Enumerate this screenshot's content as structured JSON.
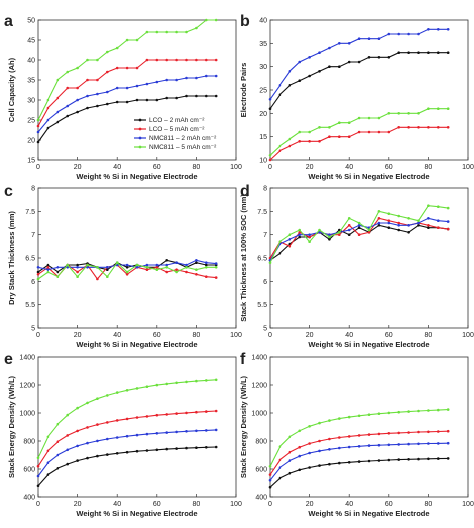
{
  "colors": {
    "black": "#111111",
    "red": "#e8212b",
    "blue": "#2a3bd6",
    "green": "#6be03c"
  },
  "legend": {
    "entries": [
      "LCO – 2 mAh cm⁻²",
      "LCO – 5 mAh cm⁻²",
      "NMC811 – 2 mAh cm⁻²",
      "NMC811 – 5 mAh cm⁻²"
    ],
    "colors": [
      "#111111",
      "#e8212b",
      "#2a3bd6",
      "#6be03c"
    ],
    "placement": "lower-right"
  },
  "chart_data": [
    {
      "letter": "a",
      "type": "line",
      "xlabel": "Weight % Si in Negative Electrode",
      "ylabel": "Cell Capacity (Ah)",
      "xlim": [
        0,
        100
      ],
      "ylim": [
        15,
        50
      ],
      "xticks": [
        0,
        20,
        40,
        60,
        80,
        100
      ],
      "yticks": [
        15,
        20,
        25,
        30,
        35,
        40,
        45,
        50
      ],
      "x": [
        0,
        5,
        10,
        15,
        20,
        25,
        30,
        35,
        40,
        45,
        50,
        55,
        60,
        65,
        70,
        75,
        80,
        85,
        90
      ],
      "series": [
        {
          "name": "LCO – 2 mAh cm⁻²",
          "color": "#111111",
          "values": [
            19.5,
            23,
            24.5,
            26,
            27,
            28,
            28.5,
            29,
            29.5,
            29.5,
            30,
            30,
            30,
            30.5,
            30.5,
            31,
            31,
            31,
            31
          ]
        },
        {
          "name": "LCO – 5 mAh cm⁻²",
          "color": "#e8212b",
          "values": [
            23.5,
            28,
            30.5,
            33,
            33,
            35,
            35,
            37,
            38,
            38,
            38,
            40,
            40,
            40,
            40,
            40,
            40,
            40,
            40
          ]
        },
        {
          "name": "NMC811 – 2 mAh cm⁻²",
          "color": "#2a3bd6",
          "values": [
            22,
            25,
            27,
            28.5,
            30,
            31,
            31.5,
            32,
            33,
            33,
            33.5,
            34,
            34.5,
            35,
            35,
            35.5,
            35.5,
            36,
            36
          ]
        },
        {
          "name": "NMC811 – 5 mAh cm⁻²",
          "color": "#6be03c",
          "values": [
            25,
            30,
            35,
            37,
            38,
            40,
            40,
            42,
            43,
            45,
            45,
            47,
            47,
            47,
            47,
            47,
            48,
            50,
            50
          ]
        }
      ]
    },
    {
      "letter": "b",
      "type": "line",
      "xlabel": "Weight % Si in Negative Electrode",
      "ylabel": "Electrode Pairs",
      "xlim": [
        0,
        100
      ],
      "ylim": [
        10,
        40
      ],
      "xticks": [
        0,
        20,
        40,
        60,
        80,
        100
      ],
      "yticks": [
        10,
        15,
        20,
        25,
        30,
        35,
        40
      ],
      "x": [
        0,
        5,
        10,
        15,
        20,
        25,
        30,
        35,
        40,
        45,
        50,
        55,
        60,
        65,
        70,
        75,
        80,
        85,
        90
      ],
      "series": [
        {
          "name": "LCO – 2 mAh cm⁻²",
          "color": "#111111",
          "values": [
            21,
            24,
            26,
            27,
            28,
            29,
            30,
            30,
            31,
            31,
            32,
            32,
            32,
            33,
            33,
            33,
            33,
            33,
            33
          ]
        },
        {
          "name": "LCO – 5 mAh cm⁻²",
          "color": "#e8212b",
          "values": [
            10,
            12,
            13,
            14,
            14,
            14,
            15,
            15,
            15,
            16,
            16,
            16,
            16,
            17,
            17,
            17,
            17,
            17,
            17
          ]
        },
        {
          "name": "NMC811 – 2 mAh cm⁻²",
          "color": "#2a3bd6",
          "values": [
            23,
            26,
            29,
            31,
            32,
            33,
            34,
            35,
            35,
            36,
            36,
            36,
            37,
            37,
            37,
            37,
            38,
            38,
            38
          ]
        },
        {
          "name": "NMC811 – 5 mAh cm⁻²",
          "color": "#6be03c",
          "values": [
            11,
            13,
            14.5,
            16,
            16,
            17,
            17,
            18,
            18,
            19,
            19,
            19,
            20,
            20,
            20,
            20,
            21,
            21,
            21
          ]
        }
      ]
    },
    {
      "letter": "c",
      "type": "line",
      "xlabel": "Weight % Si in Negative Electrode",
      "ylabel": "Dry Stack Thickness (mm)",
      "xlim": [
        0,
        100
      ],
      "ylim": [
        5,
        8
      ],
      "xticks": [
        0,
        20,
        40,
        60,
        80,
        100
      ],
      "yticks": [
        5,
        5.5,
        6,
        6.5,
        7,
        7.5,
        8
      ],
      "x": [
        0,
        5,
        10,
        15,
        20,
        25,
        30,
        35,
        40,
        45,
        50,
        55,
        60,
        65,
        70,
        75,
        80,
        85,
        90
      ],
      "series": [
        {
          "name": "LCO – 2 mAh cm⁻²",
          "color": "#111111",
          "values": [
            6.2,
            6.35,
            6.2,
            6.35,
            6.35,
            6.38,
            6.3,
            6.25,
            6.4,
            6.3,
            6.35,
            6.3,
            6.3,
            6.45,
            6.4,
            6.3,
            6.4,
            6.35,
            6.35
          ]
        },
        {
          "name": "LCO – 5 mAh cm⁻²",
          "color": "#e8212b",
          "values": [
            6.15,
            6.3,
            6.1,
            6.35,
            6.2,
            6.35,
            6.05,
            6.3,
            6.35,
            6.15,
            6.3,
            6.25,
            6.3,
            6.2,
            6.25,
            6.2,
            6.15,
            6.1,
            6.08
          ]
        },
        {
          "name": "NMC811 – 2 mAh cm⁻²",
          "color": "#2a3bd6",
          "values": [
            6.3,
            6.25,
            6.3,
            6.3,
            6.3,
            6.3,
            6.3,
            6.3,
            6.35,
            6.35,
            6.3,
            6.35,
            6.35,
            6.35,
            6.4,
            6.35,
            6.45,
            6.4,
            6.38
          ]
        },
        {
          "name": "NMC811 – 5 mAh cm⁻²",
          "color": "#6be03c",
          "values": [
            6.05,
            6.2,
            6.1,
            6.35,
            6.1,
            6.35,
            6.3,
            6.1,
            6.4,
            6.2,
            6.35,
            6.3,
            6.25,
            6.3,
            6.2,
            6.3,
            6.25,
            6.3,
            6.3
          ]
        }
      ]
    },
    {
      "letter": "d",
      "type": "line",
      "xlabel": "Weight % Si in Negative Electrode",
      "ylabel": "Stack Thickness at 100% SOC (mm)",
      "xlim": [
        0,
        100
      ],
      "ylim": [
        5,
        8
      ],
      "xticks": [
        0,
        20,
        40,
        60,
        80,
        100
      ],
      "yticks": [
        5,
        5.5,
        6,
        6.5,
        7,
        7.5,
        8
      ],
      "x": [
        0,
        5,
        10,
        15,
        20,
        25,
        30,
        35,
        40,
        45,
        50,
        55,
        60,
        65,
        70,
        75,
        80,
        85,
        90
      ],
      "series": [
        {
          "name": "LCO – 2 mAh cm⁻²",
          "color": "#111111",
          "values": [
            6.45,
            6.6,
            6.8,
            6.95,
            6.95,
            7.05,
            6.9,
            7.1,
            7.0,
            7.15,
            7.05,
            7.2,
            7.15,
            7.1,
            7.05,
            7.2,
            7.15,
            7.15,
            7.12
          ]
        },
        {
          "name": "LCO – 5 mAh cm⁻²",
          "color": "#e8212b",
          "values": [
            6.5,
            6.85,
            6.75,
            7.05,
            6.95,
            7.05,
            7.0,
            7.0,
            7.2,
            7.0,
            7.05,
            7.35,
            7.3,
            7.25,
            7.2,
            7.25,
            7.2,
            7.15,
            7.12
          ]
        },
        {
          "name": "NMC811 – 2 mAh cm⁻²",
          "color": "#2a3bd6",
          "values": [
            6.45,
            6.8,
            6.9,
            7.0,
            7.0,
            7.05,
            7.0,
            7.05,
            7.1,
            7.2,
            7.15,
            7.25,
            7.25,
            7.2,
            7.2,
            7.25,
            7.35,
            7.3,
            7.28
          ]
        },
        {
          "name": "NMC811 – 5 mAh cm⁻²",
          "color": "#6be03c",
          "values": [
            6.4,
            6.85,
            7.0,
            7.1,
            6.85,
            7.1,
            6.95,
            7.05,
            7.35,
            7.25,
            7.1,
            7.5,
            7.45,
            7.4,
            7.35,
            7.3,
            7.62,
            7.6,
            7.57
          ]
        }
      ]
    },
    {
      "letter": "e",
      "type": "line",
      "xlabel": "Weight % Si in Negative Electrode",
      "ylabel": "Stack Energy Density (Wh/L)",
      "xlim": [
        0,
        100
      ],
      "ylim": [
        400,
        1400
      ],
      "xticks": [
        0,
        20,
        40,
        60,
        80,
        100
      ],
      "yticks": [
        400,
        600,
        800,
        1000,
        1200,
        1400
      ],
      "x": [
        0,
        5,
        10,
        15,
        20,
        25,
        30,
        35,
        40,
        45,
        50,
        55,
        60,
        65,
        70,
        75,
        80,
        85,
        90
      ],
      "series": [
        {
          "name": "LCO – 2 mAh cm⁻²",
          "color": "#111111",
          "values": [
            480,
            560,
            605,
            635,
            660,
            678,
            692,
            703,
            712,
            720,
            727,
            732,
            737,
            742,
            746,
            749,
            752,
            755,
            757
          ]
        },
        {
          "name": "LCO – 5 mAh cm⁻²",
          "color": "#e8212b",
          "values": [
            620,
            730,
            795,
            840,
            872,
            897,
            917,
            933,
            947,
            958,
            968,
            976,
            984,
            990,
            996,
            1001,
            1006,
            1010,
            1014
          ]
        },
        {
          "name": "NMC811 – 2 mAh cm⁻²",
          "color": "#2a3bd6",
          "values": [
            550,
            645,
            700,
            737,
            765,
            785,
            801,
            814,
            825,
            834,
            842,
            849,
            855,
            860,
            865,
            869,
            873,
            876,
            879
          ]
        },
        {
          "name": "NMC811 – 5 mAh cm⁻²",
          "color": "#6be03c",
          "values": [
            680,
            830,
            920,
            985,
            1035,
            1072,
            1102,
            1126,
            1146,
            1162,
            1176,
            1188,
            1199,
            1208,
            1216,
            1222,
            1228,
            1233,
            1237
          ]
        }
      ]
    },
    {
      "letter": "f",
      "type": "line",
      "xlabel": "Weight % Si in Negative Electrode",
      "ylabel": "Stack Energy Density (Wh/L)",
      "xlim": [
        0,
        100
      ],
      "ylim": [
        400,
        1400
      ],
      "xticks": [
        0,
        20,
        40,
        60,
        80,
        100
      ],
      "yticks": [
        400,
        600,
        800,
        1000,
        1200,
        1400
      ],
      "x": [
        0,
        5,
        10,
        15,
        20,
        25,
        30,
        35,
        40,
        45,
        50,
        55,
        60,
        65,
        70,
        75,
        80,
        85,
        90
      ],
      "series": [
        {
          "name": "LCO – 2 mAh cm⁻²",
          "color": "#111111",
          "values": [
            470,
            535,
            570,
            594,
            611,
            624,
            634,
            642,
            648,
            653,
            657,
            661,
            664,
            667,
            669,
            671,
            673,
            674,
            676
          ]
        },
        {
          "name": "LCO – 5 mAh cm⁻²",
          "color": "#e8212b",
          "values": [
            560,
            665,
            720,
            756,
            782,
            800,
            814,
            825,
            833,
            840,
            846,
            851,
            855,
            858,
            861,
            864,
            866,
            868,
            870
          ]
        },
        {
          "name": "NMC811 – 2 mAh cm⁻²",
          "color": "#2a3bd6",
          "values": [
            520,
            610,
            660,
            692,
            714,
            729,
            741,
            750,
            757,
            762,
            767,
            770,
            773,
            776,
            778,
            780,
            782,
            783,
            784
          ]
        },
        {
          "name": "NMC811 – 5 mAh cm⁻²",
          "color": "#6be03c",
          "values": [
            620,
            760,
            830,
            873,
            905,
            928,
            946,
            960,
            971,
            980,
            988,
            995,
            1001,
            1006,
            1010,
            1014,
            1018,
            1021,
            1024
          ]
        }
      ]
    }
  ]
}
